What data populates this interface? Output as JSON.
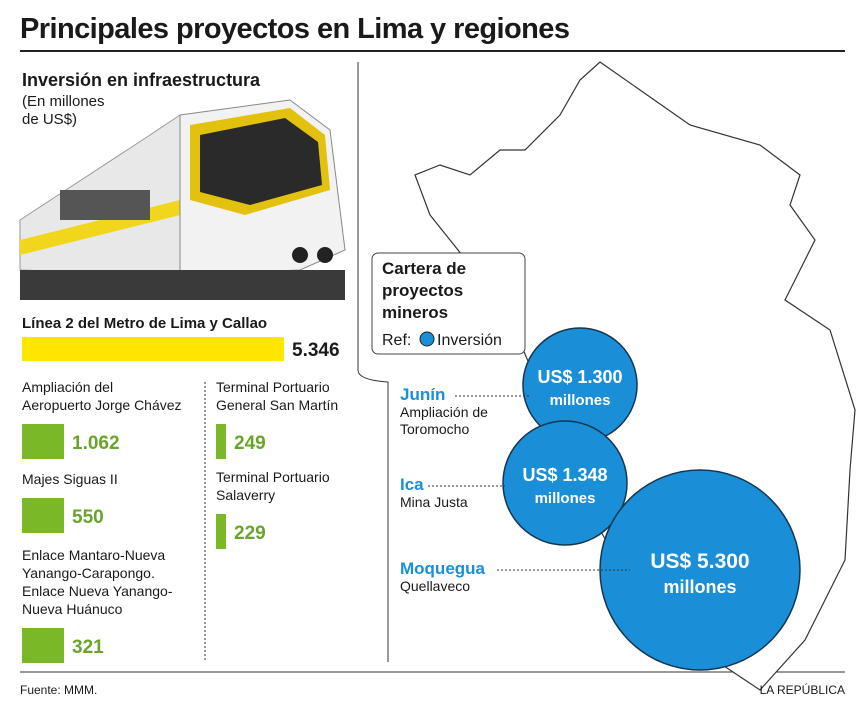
{
  "title": "Principales proyectos en Lima y regiones",
  "infrastructure": {
    "heading": "Inversión en infraestructura",
    "unit": [
      "(En millones",
      "de US$)"
    ],
    "main": {
      "name": "Línea 2 del Metro de Lima y Callao",
      "value": "5.346"
    },
    "projects": [
      {
        "name": [
          "Ampliación del",
          "Aeropuerto Jorge Chávez"
        ],
        "value": "1.062"
      },
      {
        "name": [
          "Majes Siguas II"
        ],
        "value": "550"
      },
      {
        "name": [
          "Enlace Mantaro-Nueva",
          "Yanango-Carapongo.",
          "Enlace Nueva Yanango-",
          "Nueva Huánuco"
        ],
        "value": "321"
      },
      {
        "name": [
          "Terminal Portuario",
          "General San Martín"
        ],
        "value": "249"
      },
      {
        "name": [
          "Terminal Portuario",
          "Salaverry"
        ],
        "value": "229"
      }
    ]
  },
  "mining": {
    "legend": {
      "title": [
        "Cartera de",
        "proyectos",
        "mineros"
      ],
      "ref": "Ref:",
      "item": "Inversión"
    },
    "regions": [
      {
        "region": "Junín",
        "project": [
          "Ampliación de",
          "Toromocho"
        ],
        "amount": [
          "US$ 1.300",
          "millones"
        ]
      },
      {
        "region": "Ica",
        "project": [
          "Mina Justa"
        ],
        "amount": [
          "US$ 1.348",
          "millones"
        ]
      },
      {
        "region": "Moquegua",
        "project": [
          "Quellaveco"
        ],
        "amount": [
          "US$ 5.300",
          "millones"
        ]
      }
    ]
  },
  "footer": {
    "source": "Fuente: MMM.",
    "brand": "LA REPÚBLICA"
  }
}
